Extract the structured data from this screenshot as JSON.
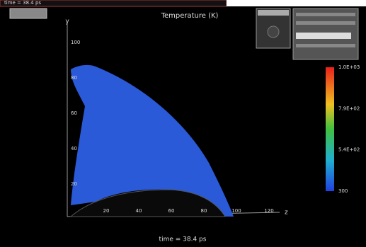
{
  "header": {
    "time": "time = 38.4 ps"
  },
  "plot": {
    "title": "Temperature (K)",
    "y_axis": "y",
    "x_axis": "z",
    "y_ticks": [
      "100",
      "80",
      "60",
      "40",
      "20"
    ],
    "x_ticks": [
      "20",
      "40",
      "60",
      "80",
      "100",
      "120"
    ],
    "footer": "time = 38.4 ps"
  },
  "colorbar": {
    "labels": [
      "1.0E+03",
      "7.9E+02",
      "5.4E+02",
      "300"
    ]
  }
}
